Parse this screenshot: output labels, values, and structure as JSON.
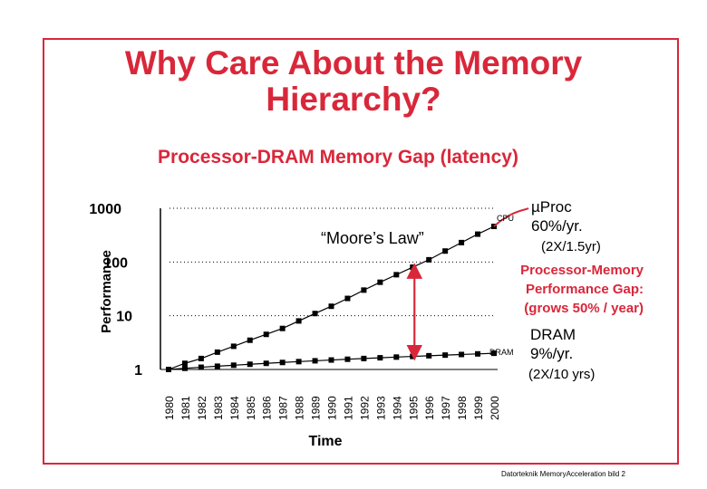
{
  "slide": {
    "title_line1": "Why Care About the Memory",
    "title_line2": "Hierarchy?",
    "subtitle": "Processor-DRAM Memory Gap (latency)",
    "footer": "Datorteknik MemoryAcceleration bild 2"
  },
  "colors": {
    "accent": "#d9273a",
    "series": "#000000"
  },
  "chart_data": {
    "type": "line",
    "xlabel": "Time",
    "ylabel": "Performance",
    "y_scale": "log",
    "ylim": [
      1,
      1000
    ],
    "y_ticks": [
      "1",
      "10",
      "100",
      "1000"
    ],
    "x": [
      "1980",
      "1981",
      "1982",
      "1983",
      "1984",
      "1985",
      "1986",
      "1987",
      "1988",
      "1989",
      "1990",
      "1991",
      "1992",
      "1993",
      "1994",
      "1995",
      "1996",
      "1997",
      "1998",
      "1999",
      "2000"
    ],
    "grid": "dotted horizontal at 10, 100, 1000",
    "series": [
      {
        "name": "CPU",
        "values": [
          1,
          1.3,
          1.6,
          2.1,
          2.7,
          3.5,
          4.5,
          5.8,
          8,
          11,
          15,
          21,
          30,
          42,
          58,
          80,
          110,
          160,
          230,
          330,
          460
        ]
      },
      {
        "name": "DRAM",
        "values": [
          1,
          1.05,
          1.1,
          1.15,
          1.2,
          1.25,
          1.3,
          1.35,
          1.4,
          1.45,
          1.5,
          1.55,
          1.6,
          1.65,
          1.7,
          1.75,
          1.8,
          1.85,
          1.9,
          1.95,
          2
        ]
      }
    ],
    "annotations": {
      "moores_law": "“Moore’s Law”",
      "cpu_tag": "CPU",
      "dram_tag": "DRAM",
      "uproc_line1": "µProc",
      "uproc_line2": "60%/yr.",
      "uproc_line3": "(2X/1.5yr)",
      "gap_line1": "Processor-Memory",
      "gap_line2": "Performance Gap:",
      "gap_line3": "(grows 50% / year)",
      "dram_line1": "DRAM",
      "dram_line2": "9%/yr.",
      "dram_line3": "(2X/10 yrs)"
    }
  }
}
